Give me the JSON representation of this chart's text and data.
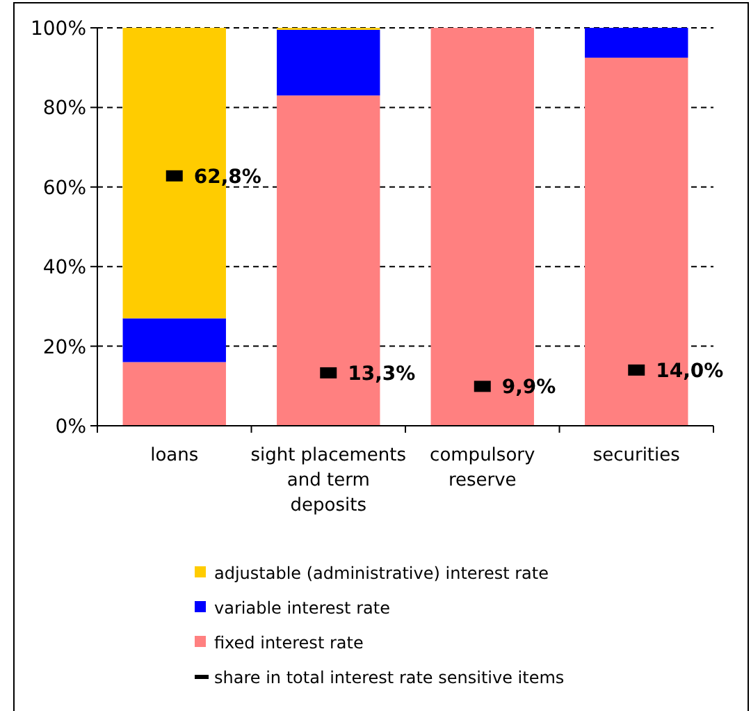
{
  "chart_data": {
    "type": "bar",
    "stacked": true,
    "categories": [
      "loans",
      "sight placements and term deposits",
      "compulsory reserve",
      "securities"
    ],
    "series": [
      {
        "name": "fixed interest rate",
        "color": "#ff8080",
        "values": [
          16,
          83,
          100,
          92.5
        ]
      },
      {
        "name": "variable interest rate",
        "color": "#0000ff",
        "values": [
          11,
          16.5,
          0,
          7.5
        ]
      },
      {
        "name": "adjustable (administrative) interest rate",
        "color": "#ffcc00",
        "values": [
          73,
          0.5,
          0,
          0
        ]
      },
      {
        "name": "share in total interest rate sensitive items",
        "type": "scatter",
        "marker": "square",
        "color": "#000000",
        "x": [
          "loans",
          "sight placements and term deposits",
          "compulsory reserve",
          "securities"
        ],
        "values": [
          62.8,
          13.3,
          9.9,
          14.0
        ],
        "value_labels": [
          "62,8%",
          "13,3%",
          "9,9%",
          "14,0%"
        ]
      }
    ],
    "ylim": [
      0,
      100
    ],
    "yticks": [
      {
        "value": 0,
        "label": "0%"
      },
      {
        "value": 20,
        "label": "20%"
      },
      {
        "value": 40,
        "label": "40%"
      },
      {
        "value": 60,
        "label": "60%"
      },
      {
        "value": 80,
        "label": "80%"
      },
      {
        "value": 100,
        "label": "100%"
      }
    ],
    "grid": "y",
    "legend": "bottom"
  }
}
